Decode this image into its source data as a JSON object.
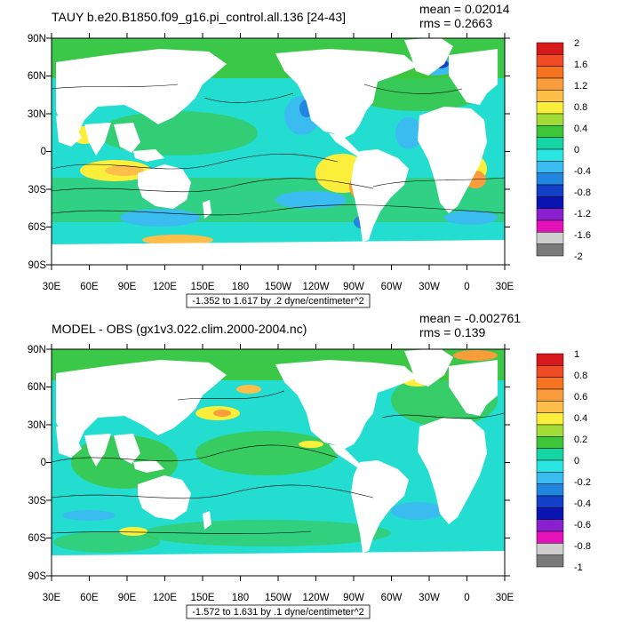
{
  "panels": [
    {
      "title": "TAUY b.e20.B1850.f09_g16.pi_control.all.136 [24-43]",
      "mean_label": "mean = 0.02014",
      "rms_label": "rms = 0.2663",
      "range_label": "-1.352 to 1.617 by .2 dyne/centimeter^2",
      "colorbar_labels": [
        "2",
        "1.6",
        "1.2",
        "0.8",
        "0.4",
        "0",
        "-0.4",
        "-0.8",
        "-1.2",
        "-1.6",
        "-2"
      ]
    },
    {
      "title": "MODEL - OBS (gx1v3.022.clim.2000-2004.nc)",
      "mean_label": "mean = -0.002761",
      "rms_label": "rms = 0.139",
      "range_label": "-1.572 to 1.631 by .1 dyne/centimeter^2",
      "colorbar_labels": [
        "1",
        "0.8",
        "0.6",
        "0.4",
        "0.2",
        "0",
        "-0.2",
        "-0.4",
        "-0.6",
        "-0.8",
        "-1"
      ]
    }
  ],
  "lat_labels": [
    "90N",
    "60N",
    "30N",
    "0",
    "30S",
    "60S",
    "90S"
  ],
  "lon_labels": [
    "30E",
    "60E",
    "90E",
    "120E",
    "150E",
    "180",
    "150W",
    "120W",
    "90W",
    "60W",
    "30W",
    "0",
    "30E"
  ],
  "colorbar_colors": [
    "#d7191c",
    "#ef4b24",
    "#f6731f",
    "#f89c3c",
    "#fdbf4a",
    "#fcef3b",
    "#a4dc37",
    "#3ec53a",
    "#14d5a4",
    "#2ae6e2",
    "#3bbcf0",
    "#2086e0",
    "#1340c8",
    "#0a14b0",
    "#8a1fd0",
    "#e312b9",
    "#cfcfcf",
    "#7a7a7a"
  ],
  "colors": {
    "ocean_base": "#22ddd0",
    "land": "#ffffff",
    "frame": "#000000"
  }
}
